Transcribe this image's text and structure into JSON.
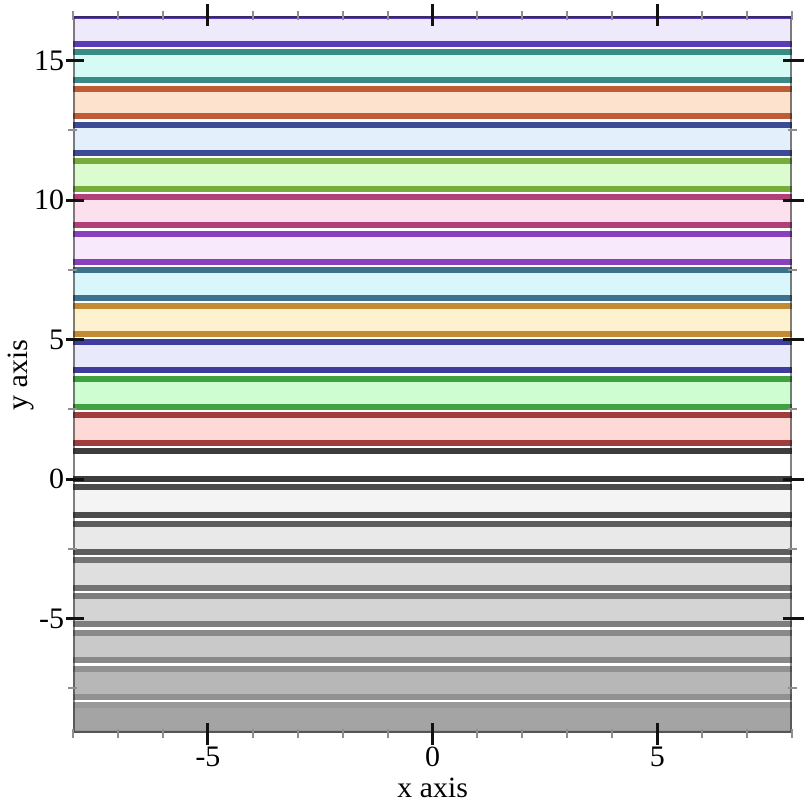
{
  "chart_data": {
    "type": "area",
    "subtype": "horizontal-interval-bands",
    "title": "",
    "xlabel": "x axis",
    "ylabel": "y axis",
    "xlim": [
      -8,
      8
    ],
    "ylim": [
      -9.1,
      16.6
    ],
    "grid": false,
    "legend": "none",
    "x_major_ticks": [
      -5,
      0,
      5
    ],
    "x_major_tick_labels": [
      "-5",
      "0",
      "5"
    ],
    "x_minor_ticks": [
      -8,
      -7,
      -6,
      -4,
      -3,
      -2,
      -1,
      1,
      2,
      3,
      4,
      6,
      7,
      8
    ],
    "y_major_ticks": [
      -5,
      0,
      5,
      10,
      15
    ],
    "y_major_tick_labels": [
      "-5",
      "0",
      "5",
      "10",
      "15"
    ],
    "y_minor_ticks": [
      -7.5,
      -2.5,
      2.5,
      7.5,
      12.5
    ],
    "bands": [
      {
        "index": -7,
        "y_min": -9.1,
        "y_max": -8.1,
        "line_color": "#999999",
        "fill_color": "#a4a4a4"
      },
      {
        "index": -6,
        "y_min": -7.8,
        "y_max": -6.8,
        "line_color": "#919191",
        "fill_color": "#b7b7b7"
      },
      {
        "index": -5,
        "y_min": -6.5,
        "y_max": -5.5,
        "line_color": "#898989",
        "fill_color": "#c9c9c9"
      },
      {
        "index": -4,
        "y_min": -5.2,
        "y_max": -4.2,
        "line_color": "#7e7e7e",
        "fill_color": "#d4d4d4"
      },
      {
        "index": -3,
        "y_min": -3.9,
        "y_max": -2.9,
        "line_color": "#747474",
        "fill_color": "#dfdfdf"
      },
      {
        "index": -2,
        "y_min": -2.6,
        "y_max": -1.6,
        "line_color": "#5d5d5d",
        "fill_color": "#e9e9e9"
      },
      {
        "index": -1,
        "y_min": -1.3,
        "y_max": -0.3,
        "line_color": "#4c4c4c",
        "fill_color": "#f4f4f4"
      },
      {
        "index": 0,
        "y_min": 0.0,
        "y_max": 1.0,
        "line_color": "#3d3d3d",
        "fill_color": "#ffffff"
      },
      {
        "index": 1,
        "y_min": 1.3,
        "y_max": 2.3,
        "line_color": "#a03c3c",
        "fill_color": "#ffd9d6"
      },
      {
        "index": 2,
        "y_min": 2.6,
        "y_max": 3.6,
        "line_color": "#3fa23f",
        "fill_color": "#cdfdd1"
      },
      {
        "index": 3,
        "y_min": 3.9,
        "y_max": 4.9,
        "line_color": "#3d3da0",
        "fill_color": "#e9e9fc"
      },
      {
        "index": 4,
        "y_min": 5.2,
        "y_max": 6.2,
        "line_color": "#c28a32",
        "fill_color": "#fdf2cd"
      },
      {
        "index": 5,
        "y_min": 6.5,
        "y_max": 7.5,
        "line_color": "#3d708c",
        "fill_color": "#d9f6fc"
      },
      {
        "index": 6,
        "y_min": 7.8,
        "y_max": 8.8,
        "line_color": "#8a3fbe",
        "fill_color": "#f8e9fd"
      },
      {
        "index": 7,
        "y_min": 9.1,
        "y_max": 10.1,
        "line_color": "#b04077",
        "fill_color": "#fde0ed"
      },
      {
        "index": 8,
        "y_min": 10.4,
        "y_max": 11.4,
        "line_color": "#76ad3a",
        "fill_color": "#dafcce"
      },
      {
        "index": 9,
        "y_min": 11.7,
        "y_max": 12.7,
        "line_color": "#3d4a96",
        "fill_color": "#e4effc"
      },
      {
        "index": 10,
        "y_min": 13.0,
        "y_max": 14.0,
        "line_color": "#bd5c35",
        "fill_color": "#fde3cd"
      },
      {
        "index": 11,
        "y_min": 14.3,
        "y_max": 15.3,
        "line_color": "#388c85",
        "fill_color": "#d6fbf5"
      },
      {
        "index": 12,
        "y_min": 15.6,
        "y_max": 16.6,
        "line_color": "#5a3cb8",
        "fill_color": "#efe9fc"
      }
    ]
  },
  "colors": {
    "background": "#ffffff",
    "major_tick": "#111111",
    "minor_tick": "#8f8f8f",
    "text": "#000000"
  }
}
